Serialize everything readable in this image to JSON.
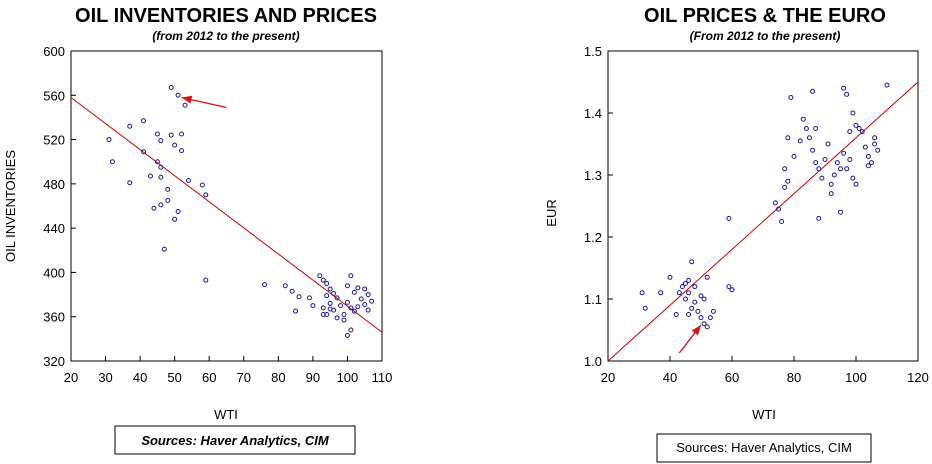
{
  "chart_data": [
    {
      "type": "scatter",
      "title": "OIL INVENTORIES AND PRICES",
      "subtitle": "(from 2012 to the present)",
      "xlabel": "WTI",
      "ylabel": "OIL INVENTORIES",
      "xlim": [
        20,
        110
      ],
      "ylim": [
        320,
        600
      ],
      "xticks": [
        20,
        30,
        40,
        50,
        60,
        70,
        80,
        90,
        100,
        110
      ],
      "yticks": [
        320,
        360,
        400,
        440,
        480,
        520,
        560,
        600
      ],
      "grid": false,
      "source": "Sources:  Haver Analytics, CIM",
      "marker_color": "#1a1aa0",
      "line_color": "#cc0000",
      "regression_line": [
        [
          20,
          558
        ],
        [
          110,
          346
        ]
      ],
      "annotation_arrow": {
        "from": [
          65,
          549
        ],
        "to": [
          52,
          558
        ],
        "color": "#dd1111"
      },
      "points": [
        [
          49,
          567
        ],
        [
          51,
          560
        ],
        [
          53,
          551
        ],
        [
          41,
          537
        ],
        [
          37,
          532
        ],
        [
          45,
          525
        ],
        [
          49,
          524
        ],
        [
          52,
          525
        ],
        [
          31,
          520
        ],
        [
          46,
          519
        ],
        [
          50,
          515
        ],
        [
          52,
          510
        ],
        [
          41,
          509
        ],
        [
          32,
          500
        ],
        [
          45,
          500
        ],
        [
          46,
          495
        ],
        [
          43,
          487
        ],
        [
          46,
          486
        ],
        [
          54,
          483
        ],
        [
          37,
          481
        ],
        [
          58,
          479
        ],
        [
          48,
          475
        ],
        [
          59,
          470
        ],
        [
          44,
          458
        ],
        [
          46,
          461
        ],
        [
          48,
          465
        ],
        [
          51,
          455
        ],
        [
          50,
          448
        ],
        [
          47,
          421
        ],
        [
          59,
          393
        ],
        [
          76,
          389
        ],
        [
          82,
          388
        ],
        [
          84,
          383
        ],
        [
          86,
          378
        ],
        [
          89,
          377
        ],
        [
          90,
          370
        ],
        [
          85,
          365
        ],
        [
          92,
          397
        ],
        [
          93,
          393
        ],
        [
          94,
          390
        ],
        [
          95,
          385
        ],
        [
          96,
          381
        ],
        [
          94,
          379
        ],
        [
          97,
          377
        ],
        [
          95,
          372
        ],
        [
          93,
          368
        ],
        [
          98,
          370
        ],
        [
          96,
          366
        ],
        [
          94,
          362
        ],
        [
          97,
          359
        ],
        [
          99,
          357
        ],
        [
          101,
          397
        ],
        [
          100,
          388
        ],
        [
          103,
          386
        ],
        [
          105,
          385
        ],
        [
          102,
          382
        ],
        [
          106,
          380
        ],
        [
          104,
          376
        ],
        [
          107,
          374
        ],
        [
          100,
          373
        ],
        [
          105,
          371
        ],
        [
          103,
          369
        ],
        [
          101,
          368
        ],
        [
          106,
          366
        ],
        [
          102,
          365
        ],
        [
          99,
          362
        ],
        [
          101,
          348
        ],
        [
          100,
          343
        ],
        [
          93,
          362
        ],
        [
          95,
          367
        ]
      ]
    },
    {
      "type": "scatter",
      "title": "OIL PRICES & THE EURO",
      "subtitle": "(From 2012 to the present)",
      "xlabel": "WTI",
      "ylabel": "EUR",
      "xlim": [
        20,
        120
      ],
      "ylim": [
        1.0,
        1.5
      ],
      "xticks": [
        20,
        40,
        60,
        80,
        100,
        120
      ],
      "yticks": [
        1.0,
        1.1,
        1.2,
        1.3,
        1.4,
        1.5
      ],
      "grid": false,
      "source": "Sources:  Haver Analytics, CIM",
      "marker_color": "#1a1aa0",
      "line_color": "#cc0000",
      "regression_line": [
        [
          20,
          1.0
        ],
        [
          120,
          1.45
        ]
      ],
      "annotation_arrow": {
        "from": [
          43,
          1.013
        ],
        "to": [
          50,
          1.058
        ],
        "color": "#dd1111"
      },
      "points": [
        [
          31,
          1.11
        ],
        [
          32,
          1.085
        ],
        [
          37,
          1.11
        ],
        [
          40,
          1.135
        ],
        [
          42,
          1.075
        ],
        [
          43,
          1.11
        ],
        [
          44,
          1.12
        ],
        [
          45,
          1.125
        ],
        [
          45,
          1.1
        ],
        [
          46,
          1.13
        ],
        [
          47,
          1.16
        ],
        [
          46,
          1.11
        ],
        [
          47,
          1.085
        ],
        [
          48,
          1.12
        ],
        [
          49,
          1.08
        ],
        [
          50,
          1.07
        ],
        [
          51,
          1.06
        ],
        [
          52,
          1.055
        ],
        [
          53,
          1.07
        ],
        [
          54,
          1.08
        ],
        [
          48,
          1.095
        ],
        [
          50,
          1.105
        ],
        [
          52,
          1.135
        ],
        [
          51,
          1.1
        ],
        [
          46,
          1.075
        ],
        [
          59,
          1.23
        ],
        [
          59,
          1.12
        ],
        [
          60,
          1.115
        ],
        [
          74,
          1.255
        ],
        [
          75,
          1.245
        ],
        [
          76,
          1.225
        ],
        [
          77,
          1.31
        ],
        [
          78,
          1.29
        ],
        [
          77,
          1.28
        ],
        [
          78,
          1.36
        ],
        [
          79,
          1.425
        ],
        [
          80,
          1.33
        ],
        [
          82,
          1.355
        ],
        [
          83,
          1.39
        ],
        [
          84,
          1.375
        ],
        [
          85,
          1.36
        ],
        [
          86,
          1.34
        ],
        [
          87,
          1.375
        ],
        [
          86,
          1.435
        ],
        [
          87,
          1.32
        ],
        [
          88,
          1.31
        ],
        [
          89,
          1.295
        ],
        [
          90,
          1.325
        ],
        [
          91,
          1.35
        ],
        [
          92,
          1.27
        ],
        [
          93,
          1.3
        ],
        [
          94,
          1.32
        ],
        [
          95,
          1.31
        ],
        [
          96,
          1.335
        ],
        [
          96,
          1.44
        ],
        [
          97,
          1.43
        ],
        [
          98,
          1.37
        ],
        [
          98,
          1.325
        ],
        [
          99,
          1.4
        ],
        [
          100,
          1.38
        ],
        [
          101,
          1.375
        ],
        [
          102,
          1.37
        ],
        [
          103,
          1.345
        ],
        [
          104,
          1.33
        ],
        [
          105,
          1.32
        ],
        [
          106,
          1.35
        ],
        [
          107,
          1.34
        ],
        [
          104,
          1.315
        ],
        [
          99,
          1.295
        ],
        [
          100,
          1.285
        ],
        [
          95,
          1.24
        ],
        [
          110,
          1.445
        ],
        [
          92,
          1.285
        ],
        [
          88,
          1.23
        ],
        [
          97,
          1.31
        ],
        [
          106,
          1.36
        ]
      ]
    }
  ]
}
